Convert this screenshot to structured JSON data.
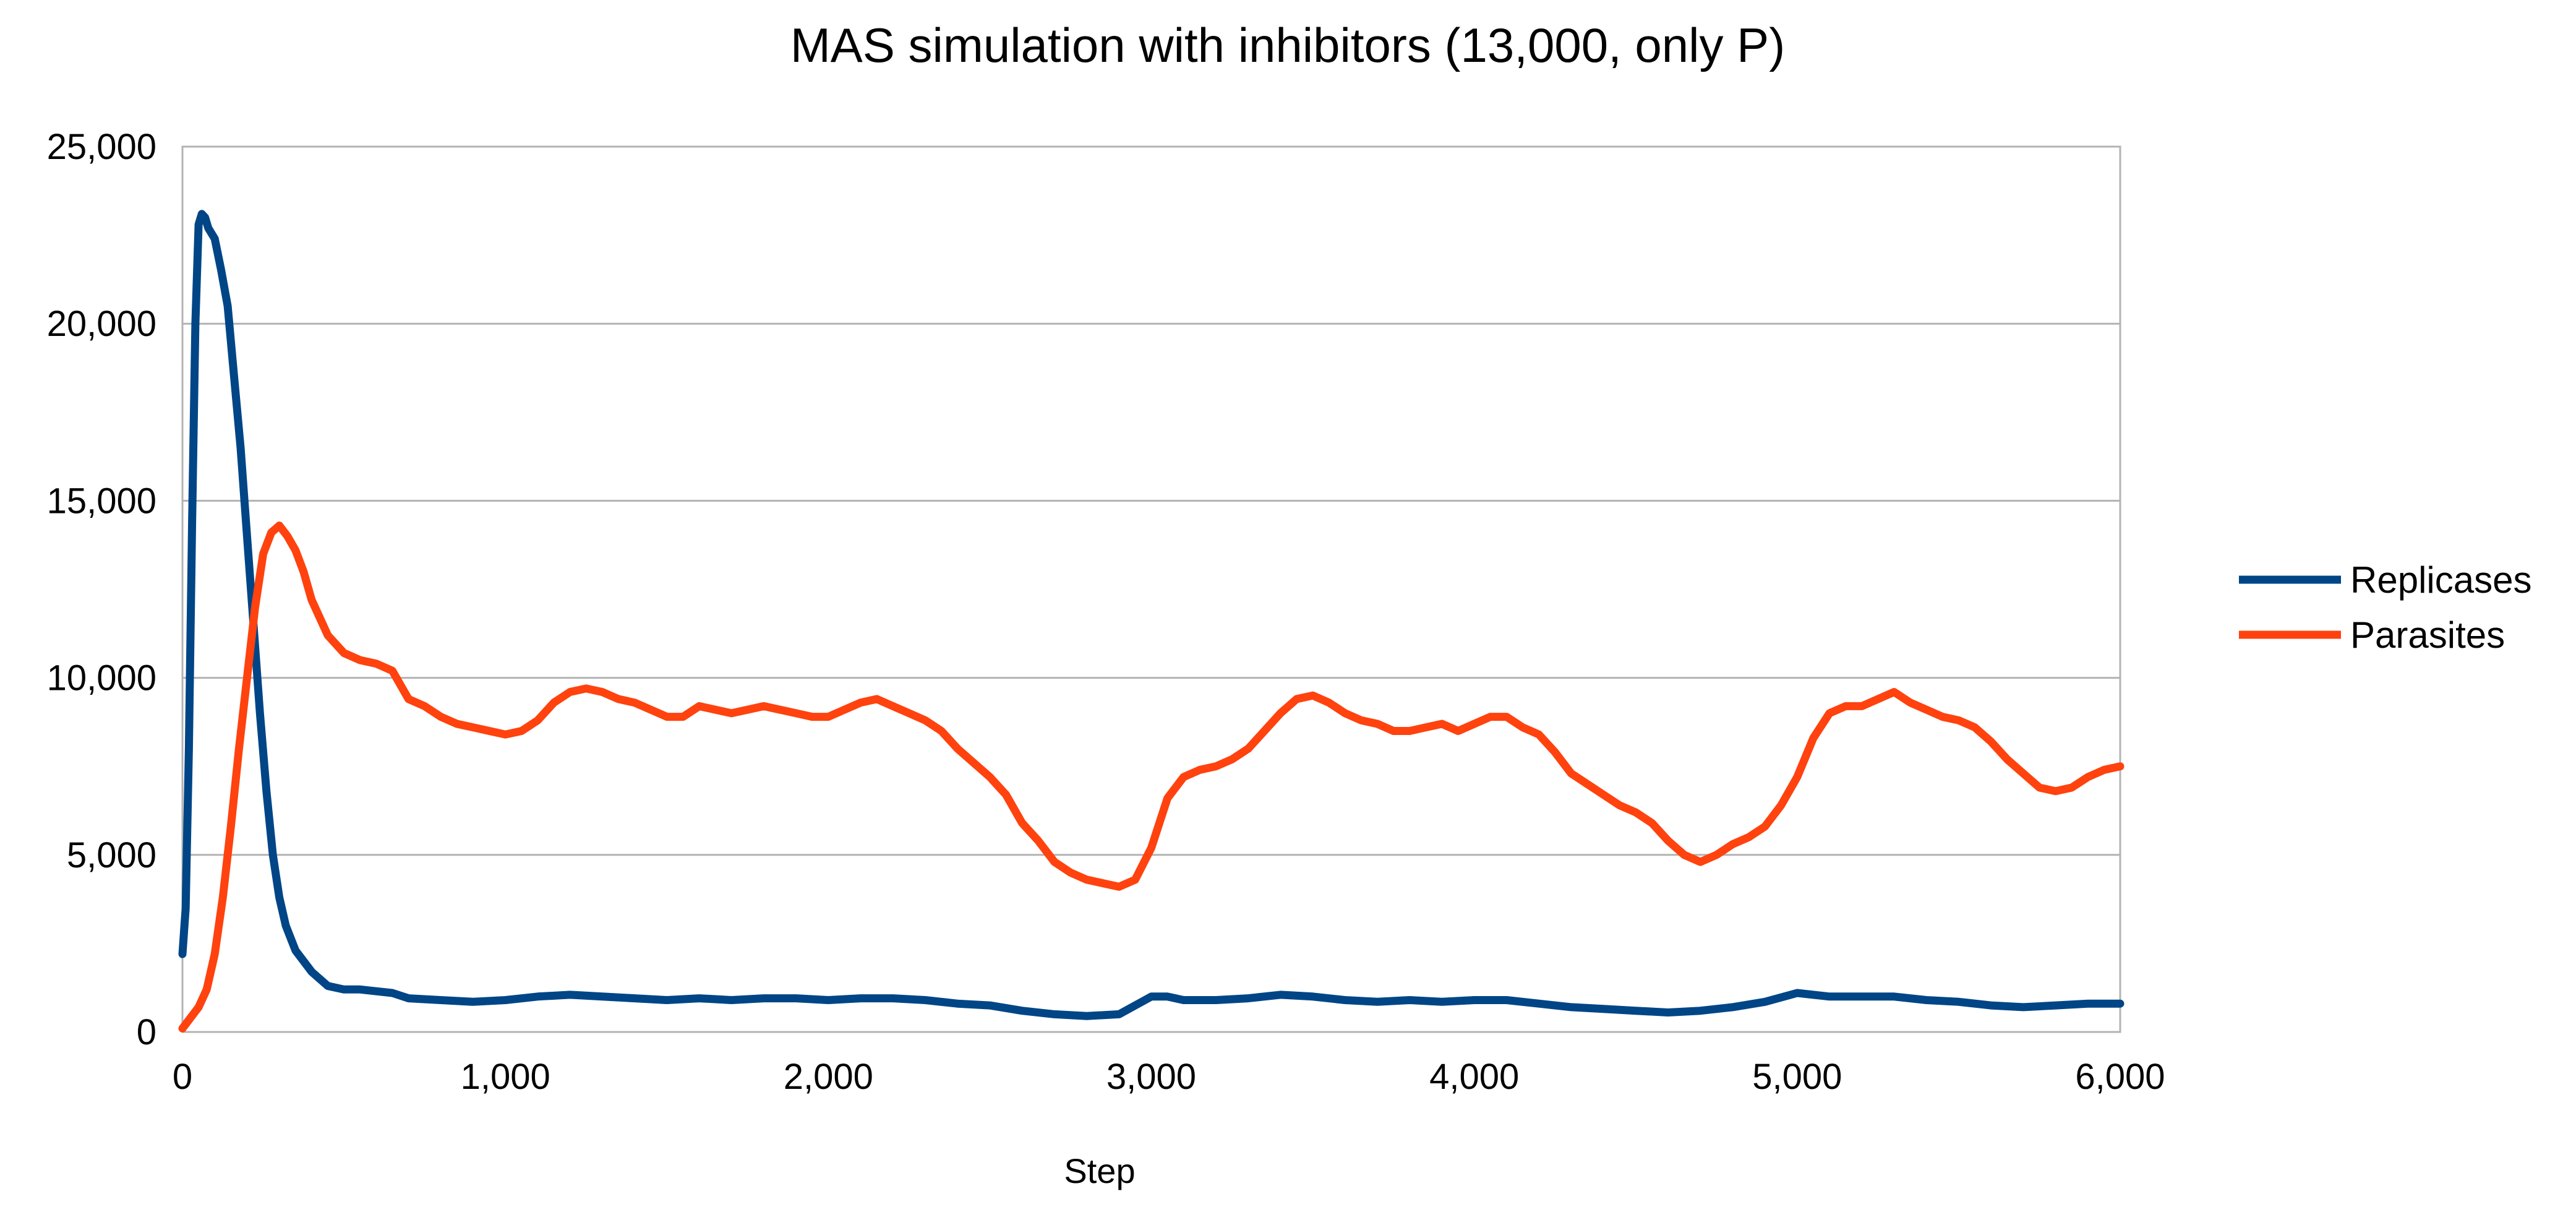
{
  "chart_data": {
    "type": "line",
    "title": "MAS simulation with inhibitors (13,000, only P)",
    "xlabel": "Step",
    "ylabel": "",
    "xlim": [
      0,
      6000
    ],
    "ylim": [
      0,
      25000
    ],
    "x_ticks": [
      "0",
      "1,000",
      "2,000",
      "3,000",
      "4,000",
      "5,000",
      "6,000"
    ],
    "y_ticks": [
      "0",
      "5,000",
      "10,000",
      "15,000",
      "20,000",
      "25,000"
    ],
    "grid": "horizontal",
    "legend_position": "right",
    "series": [
      {
        "name": "Replicases",
        "color": "#004586",
        "x": [
          0,
          10,
          20,
          30,
          40,
          50,
          60,
          70,
          80,
          100,
          120,
          140,
          160,
          180,
          200,
          220,
          240,
          260,
          280,
          300,
          320,
          350,
          400,
          450,
          500,
          550,
          600,
          650,
          700,
          800,
          900,
          1000,
          1100,
          1200,
          1300,
          1400,
          1500,
          1600,
          1700,
          1800,
          1900,
          2000,
          2100,
          2200,
          2300,
          2400,
          2500,
          2600,
          2700,
          2800,
          2900,
          3000,
          3050,
          3100,
          3200,
          3300,
          3400,
          3500,
          3600,
          3700,
          3800,
          3900,
          4000,
          4100,
          4200,
          4300,
          4400,
          4500,
          4600,
          4700,
          4800,
          4900,
          5000,
          5100,
          5200,
          5300,
          5400,
          5500,
          5600,
          5700,
          5800,
          5900,
          6000
        ],
        "values": [
          2200,
          3500,
          8000,
          14500,
          20000,
          22800,
          23100,
          23000,
          22700,
          22400,
          21500,
          20500,
          18500,
          16500,
          14000,
          11500,
          9000,
          6800,
          5000,
          3800,
          3000,
          2300,
          1700,
          1300,
          1200,
          1200,
          1150,
          1100,
          950,
          900,
          850,
          900,
          1000,
          1050,
          1000,
          950,
          900,
          950,
          900,
          950,
          950,
          900,
          950,
          950,
          900,
          800,
          750,
          600,
          500,
          450,
          500,
          1000,
          1000,
          900,
          900,
          950,
          1050,
          1000,
          900,
          850,
          900,
          850,
          900,
          900,
          800,
          700,
          650,
          600,
          550,
          600,
          700,
          850,
          1100,
          1000,
          1000,
          1000,
          900,
          850,
          750,
          700,
          750,
          800,
          800
        ]
      },
      {
        "name": "Parasites",
        "color": "#ff420e",
        "x": [
          0,
          25,
          50,
          75,
          100,
          125,
          150,
          175,
          200,
          225,
          250,
          275,
          300,
          325,
          350,
          375,
          400,
          450,
          500,
          550,
          600,
          650,
          700,
          750,
          800,
          850,
          900,
          950,
          1000,
          1050,
          1100,
          1150,
          1200,
          1250,
          1300,
          1350,
          1400,
          1450,
          1500,
          1550,
          1600,
          1650,
          1700,
          1750,
          1800,
          1850,
          1900,
          1950,
          2000,
          2050,
          2100,
          2150,
          2200,
          2250,
          2300,
          2350,
          2400,
          2450,
          2500,
          2550,
          2600,
          2650,
          2700,
          2750,
          2800,
          2850,
          2900,
          2950,
          3000,
          3050,
          3100,
          3150,
          3200,
          3250,
          3300,
          3350,
          3400,
          3450,
          3500,
          3550,
          3600,
          3650,
          3700,
          3750,
          3800,
          3850,
          3900,
          3950,
          4000,
          4050,
          4100,
          4150,
          4200,
          4250,
          4300,
          4350,
          4400,
          4450,
          4500,
          4550,
          4600,
          4650,
          4700,
          4750,
          4800,
          4850,
          4900,
          4950,
          5000,
          5050,
          5100,
          5150,
          5200,
          5250,
          5300,
          5350,
          5400,
          5450,
          5500,
          5550,
          5600,
          5650,
          5700,
          5750,
          5800,
          5850,
          5900,
          5950,
          6000
        ],
        "values": [
          100,
          400,
          700,
          1200,
          2200,
          3800,
          5800,
          8000,
          10000,
          12000,
          13500,
          14100,
          14300,
          14000,
          13600,
          13000,
          12200,
          11200,
          10700,
          10500,
          10400,
          10200,
          9400,
          9200,
          8900,
          8700,
          8600,
          8500,
          8400,
          8500,
          8800,
          9300,
          9600,
          9700,
          9600,
          9400,
          9300,
          9100,
          8900,
          8900,
          9200,
          9100,
          9000,
          9100,
          9200,
          9100,
          9000,
          8900,
          8900,
          9100,
          9300,
          9400,
          9200,
          9000,
          8800,
          8500,
          8000,
          7600,
          7200,
          6700,
          5900,
          5400,
          4800,
          4500,
          4300,
          4200,
          4100,
          4300,
          5200,
          6600,
          7200,
          7400,
          7500,
          7700,
          8000,
          8500,
          9000,
          9400,
          9500,
          9300,
          9000,
          8800,
          8700,
          8500,
          8500,
          8600,
          8700,
          8500,
          8700,
          8900,
          8900,
          8600,
          8400,
          7900,
          7300,
          7000,
          6700,
          6400,
          6200,
          5900,
          5400,
          5000,
          4800,
          5000,
          5300,
          5500,
          5800,
          6400,
          7200,
          8300,
          9000,
          9200,
          9200,
          9400,
          9600,
          9300,
          9100,
          8900,
          8800,
          8600,
          8200,
          7700,
          7300,
          6900,
          6800,
          6900,
          7200,
          7400,
          7500
        ]
      }
    ]
  }
}
